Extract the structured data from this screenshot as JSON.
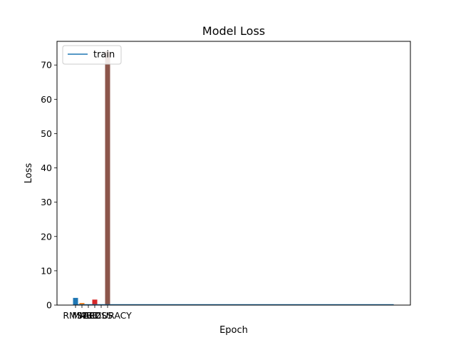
{
  "chart_data": {
    "type": "bar",
    "title": "Model Loss",
    "xlabel": "Epoch",
    "ylabel": "Loss",
    "ylim": [
      0,
      76.9
    ],
    "xlim": [
      -1.25,
      25.25
    ],
    "y_ticks": [
      0,
      10,
      20,
      30,
      40,
      50,
      60,
      70
    ],
    "x_tick_labels": [
      "RMSE",
      "MAE",
      "MSE",
      "R2",
      "LOSS",
      "ACCURACY"
    ],
    "grid": false,
    "legend": {
      "placement": "upper-left",
      "entries": [
        "train"
      ]
    },
    "bars": [
      {
        "category": "RMSE",
        "value": 2.1,
        "color": "#1f77b4"
      },
      {
        "category": "MAE",
        "value": 0.6,
        "color": "#ff7f0e"
      },
      {
        "category": "MSE",
        "value": 0.15,
        "color": "#2ca02c"
      },
      {
        "category": "R2",
        "value": 1.6,
        "color": "#d62728"
      },
      {
        "category": "LOSS",
        "value": 0.05,
        "color": "#9467bd"
      },
      {
        "category": "ACCURACY",
        "value": 74.0,
        "color": "#8c564b"
      }
    ],
    "series": [
      {
        "name": "train",
        "type": "line",
        "color": "#1f77b4",
        "x": [
          0,
          24
        ],
        "y": [
          0.1,
          0.1
        ]
      }
    ]
  }
}
